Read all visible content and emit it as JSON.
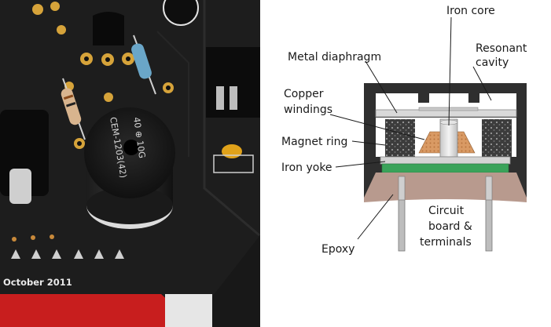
{
  "photo": {
    "pcb_date": "October 2011",
    "buzzer_marking": "CEM-1203(42)",
    "buzzer_marking_2": "40 ⊕ 10G"
  },
  "diagram": {
    "labels": {
      "iron_core": "Iron core",
      "resonant_1": "Resonant",
      "resonant_2": "cavity",
      "metal_diaphragm": "Metal diaphragm",
      "copper_1": "Copper",
      "copper_2": "windings",
      "magnet_ring": "Magnet ring",
      "iron_yoke": "Iron yoke",
      "epoxy": "Epoxy",
      "circuit_1": "Circuit",
      "circuit_2": "board &",
      "circuit_3": "terminals"
    },
    "colors": {
      "housing": "#2f2f2f",
      "epoxy": "#b89a8e",
      "board": "#3aa35a",
      "copper": "#d99a64",
      "magnet": "#3c3c3c"
    }
  }
}
